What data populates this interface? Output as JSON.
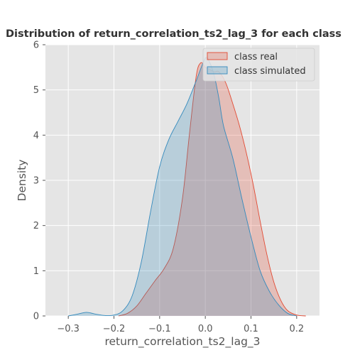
{
  "chart_data": {
    "type": "area",
    "title": "Distribution of return_correlation_ts2_lag_3 for each class",
    "xlabel": "return_correlation_ts2_lag_3",
    "ylabel": "Density",
    "xlim": [
      -0.35,
      0.25
    ],
    "ylim": [
      0,
      6
    ],
    "xticks": [
      -0.3,
      -0.2,
      -0.1,
      0.0,
      0.1,
      0.2
    ],
    "xtick_labels": [
      "−0.3",
      "−0.2",
      "−0.1",
      "0.0",
      "0.1",
      "0.2"
    ],
    "yticks": [
      0,
      1,
      2,
      3,
      4,
      5,
      6
    ],
    "ytick_labels": [
      "0",
      "1",
      "2",
      "3",
      "4",
      "5",
      "6"
    ],
    "grid": true,
    "legend_position": "top-right",
    "series": [
      {
        "name": "class real",
        "color": "#E24A33",
        "x": [
          -0.19,
          -0.17,
          -0.15,
          -0.13,
          -0.11,
          -0.09,
          -0.07,
          -0.05,
          -0.035,
          -0.02,
          -0.01,
          0.0,
          0.01,
          0.02,
          0.03,
          0.045,
          0.06,
          0.075,
          0.09,
          0.105,
          0.12,
          0.135,
          0.15,
          0.165,
          0.18,
          0.2,
          0.22
        ],
        "y": [
          0.0,
          0.06,
          0.22,
          0.5,
          0.78,
          1.05,
          1.5,
          2.6,
          4.0,
          5.3,
          5.6,
          5.5,
          5.45,
          5.4,
          5.4,
          5.15,
          4.7,
          4.2,
          3.6,
          2.9,
          2.1,
          1.35,
          0.75,
          0.35,
          0.12,
          0.02,
          0.0
        ]
      },
      {
        "name": "class simulated",
        "color": "#348ABD",
        "x": [
          -0.3,
          -0.28,
          -0.26,
          -0.24,
          -0.22,
          -0.2,
          -0.18,
          -0.16,
          -0.14,
          -0.12,
          -0.1,
          -0.08,
          -0.06,
          -0.04,
          -0.02,
          0.0,
          0.01,
          0.02,
          0.03,
          0.04,
          0.06,
          0.08,
          0.1,
          0.12,
          0.14,
          0.16,
          0.18,
          0.2
        ],
        "y": [
          0.0,
          0.04,
          0.08,
          0.04,
          0.01,
          0.02,
          0.12,
          0.45,
          1.2,
          2.3,
          3.3,
          3.9,
          4.3,
          4.7,
          5.2,
          5.7,
          5.6,
          5.3,
          4.8,
          4.2,
          3.5,
          2.6,
          1.75,
          1.0,
          0.55,
          0.25,
          0.06,
          0.0
        ]
      }
    ]
  }
}
